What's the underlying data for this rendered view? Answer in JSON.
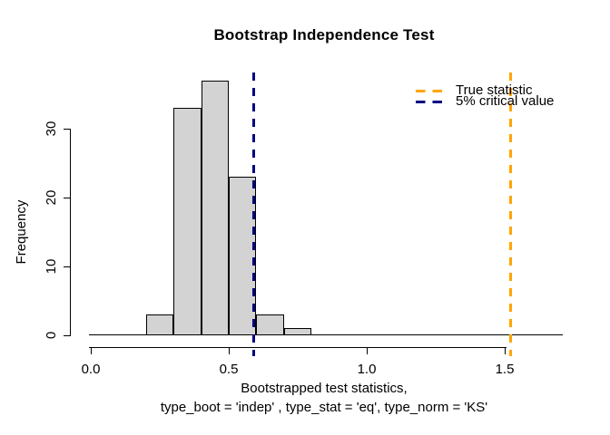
{
  "title": "Bootstrap Independence Test",
  "axes": {
    "y": {
      "label": "Frequency",
      "ticks": [
        "0",
        "10",
        "20",
        "30"
      ],
      "tick_values": [
        0,
        10,
        20,
        30
      ]
    },
    "x": {
      "ticks": [
        "0.0",
        "0.5",
        "1.0",
        "1.5"
      ],
      "tick_values": [
        0,
        0.5,
        1.0,
        1.5
      ],
      "label_line1": "Bootstrapped test statistics,",
      "label_line2": "type_boot = 'indep' , type_stat = 'eq', type_norm = 'KS'"
    }
  },
  "legend": {
    "position": "top-right",
    "items": [
      {
        "label": "True statistic",
        "color": "#FFA500",
        "line_style": "dashed"
      },
      {
        "label": "5% critical value",
        "color": "#000080",
        "line_style": "dashed"
      }
    ]
  },
  "colors": {
    "background": "#FFFFFF",
    "bar_fill": "#D3D3D3",
    "bar_border": "#000000",
    "axis": "#000000",
    "true_statistic_line": "#FFA500",
    "critical_value_line": "#000080"
  },
  "chart_data": {
    "type": "bar",
    "subtype": "histogram",
    "title": "Bootstrap Independence Test",
    "xlabel": "Bootstrapped test statistics,\ntype_boot = 'indep' , type_stat = 'eq', type_norm = 'KS'",
    "ylabel": "Frequency",
    "xlim": [
      0,
      1.7
    ],
    "ylim": [
      0,
      37
    ],
    "grid": false,
    "x_ticks": [
      0,
      0.5,
      1.0,
      1.5
    ],
    "y_ticks": [
      0,
      10,
      20,
      30
    ],
    "bins": [
      {
        "start": 0.2,
        "end": 0.3,
        "count": 3
      },
      {
        "start": 0.3,
        "end": 0.4,
        "count": 33
      },
      {
        "start": 0.4,
        "end": 0.5,
        "count": 37
      },
      {
        "start": 0.5,
        "end": 0.6,
        "count": 23
      },
      {
        "start": 0.6,
        "end": 0.7,
        "count": 3
      },
      {
        "start": 0.7,
        "end": 0.8,
        "count": 1
      }
    ],
    "total_count": 100,
    "vlines": [
      {
        "x": 0.59,
        "label": "5% critical value",
        "color": "#000080",
        "style": "dashed"
      },
      {
        "x": 1.52,
        "label": "True statistic",
        "color": "#FFA500",
        "style": "dashed"
      }
    ],
    "legend_position": "top-right"
  }
}
